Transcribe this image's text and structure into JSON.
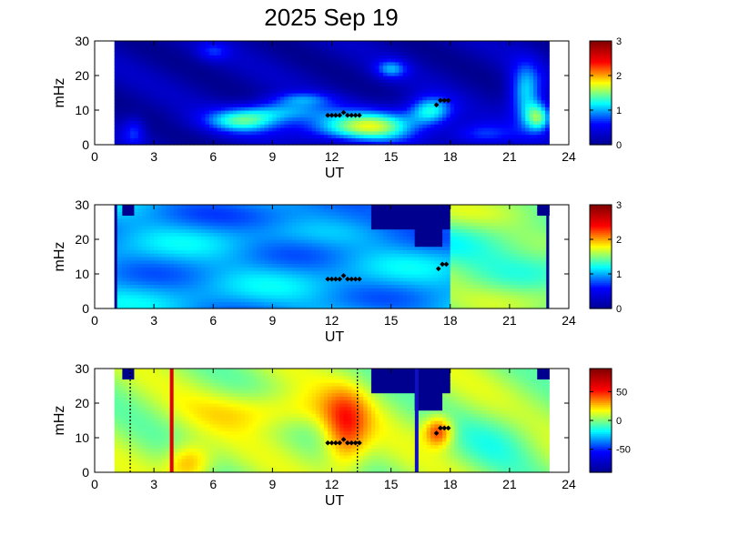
{
  "figure": {
    "title": "2025 Sep 19"
  },
  "colors": {
    "jet_stops": [
      "#00008f",
      "#0000ff",
      "#00ffff",
      "#ffff00",
      "#ff0000",
      "#800000"
    ],
    "marker": "#000000",
    "red_line": "#e00000",
    "blue_line": "#1010c0"
  },
  "chart_data": [
    {
      "type": "heatmap",
      "panel": 1,
      "xlabel": "UT",
      "ylabel": "mHz",
      "xlim": [
        0,
        24
      ],
      "ylim": [
        0,
        30
      ],
      "xticks": [
        0,
        3,
        6,
        9,
        12,
        15,
        18,
        21,
        24
      ],
      "yticks": [
        0,
        10,
        20,
        30
      ],
      "data_extent_ut": [
        1.0,
        23.0
      ],
      "colorbar": {
        "range": [
          0,
          3
        ],
        "ticks": [
          0,
          1,
          2,
          3
        ]
      },
      "markers": [
        {
          "ut": 11.8,
          "f": 8.5
        },
        {
          "ut": 12.0,
          "f": 8.5
        },
        {
          "ut": 12.2,
          "f": 8.5
        },
        {
          "ut": 12.4,
          "f": 8.5
        },
        {
          "ut": 12.6,
          "f": 9.3
        },
        {
          "ut": 12.8,
          "f": 8.5
        },
        {
          "ut": 13.0,
          "f": 8.5
        },
        {
          "ut": 13.2,
          "f": 8.5
        },
        {
          "ut": 13.4,
          "f": 8.5
        },
        {
          "ut": 17.3,
          "f": 11.5
        },
        {
          "ut": 17.5,
          "f": 12.8
        },
        {
          "ut": 17.7,
          "f": 12.8
        },
        {
          "ut": 17.9,
          "f": 12.8
        }
      ],
      "features": [
        {
          "ut": 7.5,
          "f": 7.0,
          "sut": 1.4,
          "sf": 2.5,
          "amp": 0.7
        },
        {
          "ut": 9.5,
          "f": 10.0,
          "sut": 1.6,
          "sf": 2.2,
          "amp": 0.5
        },
        {
          "ut": 10.5,
          "f": 13.5,
          "sut": 1.2,
          "sf": 1.5,
          "amp": 0.35
        },
        {
          "ut": 12.5,
          "f": 5.0,
          "sut": 2.0,
          "sf": 3.0,
          "amp": 0.55
        },
        {
          "ut": 14.5,
          "f": 6.0,
          "sut": 1.5,
          "sf": 3.5,
          "amp": 0.6
        },
        {
          "ut": 15.0,
          "f": 22.0,
          "sut": 0.6,
          "sf": 2.0,
          "amp": 0.5
        },
        {
          "ut": 17.0,
          "f": 10.0,
          "sut": 0.8,
          "sf": 3.0,
          "amp": 0.7
        },
        {
          "ut": 19.5,
          "f": 3.0,
          "sut": 1.2,
          "sf": 2.5,
          "amp": 0.4
        },
        {
          "ut": 21.8,
          "f": 15.0,
          "sut": 0.6,
          "sf": 6.0,
          "amp": 0.7
        },
        {
          "ut": 22.5,
          "f": 8.0,
          "sut": 0.5,
          "sf": 3.0,
          "amp": 0.8
        },
        {
          "ut": 6.0,
          "f": 27.0,
          "sut": 0.6,
          "sf": 2.0,
          "amp": 0.3
        },
        {
          "ut": 2.0,
          "f": 4.0,
          "sut": 0.4,
          "sf": 3.0,
          "amp": 0.35
        }
      ]
    },
    {
      "type": "heatmap",
      "panel": 2,
      "xlabel": "UT",
      "ylabel": "mHz",
      "xlim": [
        0,
        24
      ],
      "ylim": [
        0,
        30
      ],
      "xticks": [
        0,
        3,
        6,
        9,
        12,
        15,
        18,
        21,
        24
      ],
      "yticks": [
        0,
        10,
        20,
        30
      ],
      "data_extent_ut": [
        1.0,
        23.0
      ],
      "colorbar": {
        "range": [
          0,
          3
        ],
        "ticks": [
          0,
          1,
          2,
          3
        ]
      },
      "markers": [
        {
          "ut": 11.8,
          "f": 8.5
        },
        {
          "ut": 12.0,
          "f": 8.5
        },
        {
          "ut": 12.2,
          "f": 8.5
        },
        {
          "ut": 12.4,
          "f": 8.5
        },
        {
          "ut": 12.6,
          "f": 9.5
        },
        {
          "ut": 12.8,
          "f": 8.5
        },
        {
          "ut": 13.0,
          "f": 8.5
        },
        {
          "ut": 13.2,
          "f": 8.5
        },
        {
          "ut": 13.4,
          "f": 8.5
        },
        {
          "ut": 17.4,
          "f": 11.5
        },
        {
          "ut": 17.6,
          "f": 12.8
        },
        {
          "ut": 17.8,
          "f": 12.8
        }
      ]
    },
    {
      "type": "heatmap",
      "panel": 3,
      "xlabel": "UT",
      "ylabel": "mHz",
      "xlim": [
        0,
        24
      ],
      "ylim": [
        0,
        30
      ],
      "xticks": [
        0,
        3,
        6,
        9,
        12,
        15,
        18,
        21,
        24
      ],
      "yticks": [
        0,
        10,
        20,
        30
      ],
      "data_extent_ut": [
        1.0,
        23.0
      ],
      "colorbar": {
        "range": [
          -90,
          90
        ],
        "ticks": [
          -50,
          0,
          50
        ]
      },
      "vertical_lines": [
        {
          "ut": 3.9,
          "color": "red",
          "style": "solid"
        },
        {
          "ut": 16.3,
          "color": "blue",
          "style": "solid"
        },
        {
          "ut": 1.8,
          "color": "black",
          "style": "dotted"
        },
        {
          "ut": 13.3,
          "color": "black",
          "style": "dotted"
        }
      ],
      "markers": [
        {
          "ut": 11.8,
          "f": 8.5
        },
        {
          "ut": 12.0,
          "f": 8.5
        },
        {
          "ut": 12.2,
          "f": 8.5
        },
        {
          "ut": 12.4,
          "f": 8.5
        },
        {
          "ut": 12.6,
          "f": 9.5
        },
        {
          "ut": 12.8,
          "f": 8.5
        },
        {
          "ut": 13.0,
          "f": 8.5
        },
        {
          "ut": 13.2,
          "f": 8.5
        },
        {
          "ut": 13.4,
          "f": 8.5
        },
        {
          "ut": 17.3,
          "f": 11.3
        },
        {
          "ut": 17.5,
          "f": 12.8
        },
        {
          "ut": 17.7,
          "f": 12.8
        },
        {
          "ut": 17.9,
          "f": 12.8
        }
      ]
    }
  ]
}
